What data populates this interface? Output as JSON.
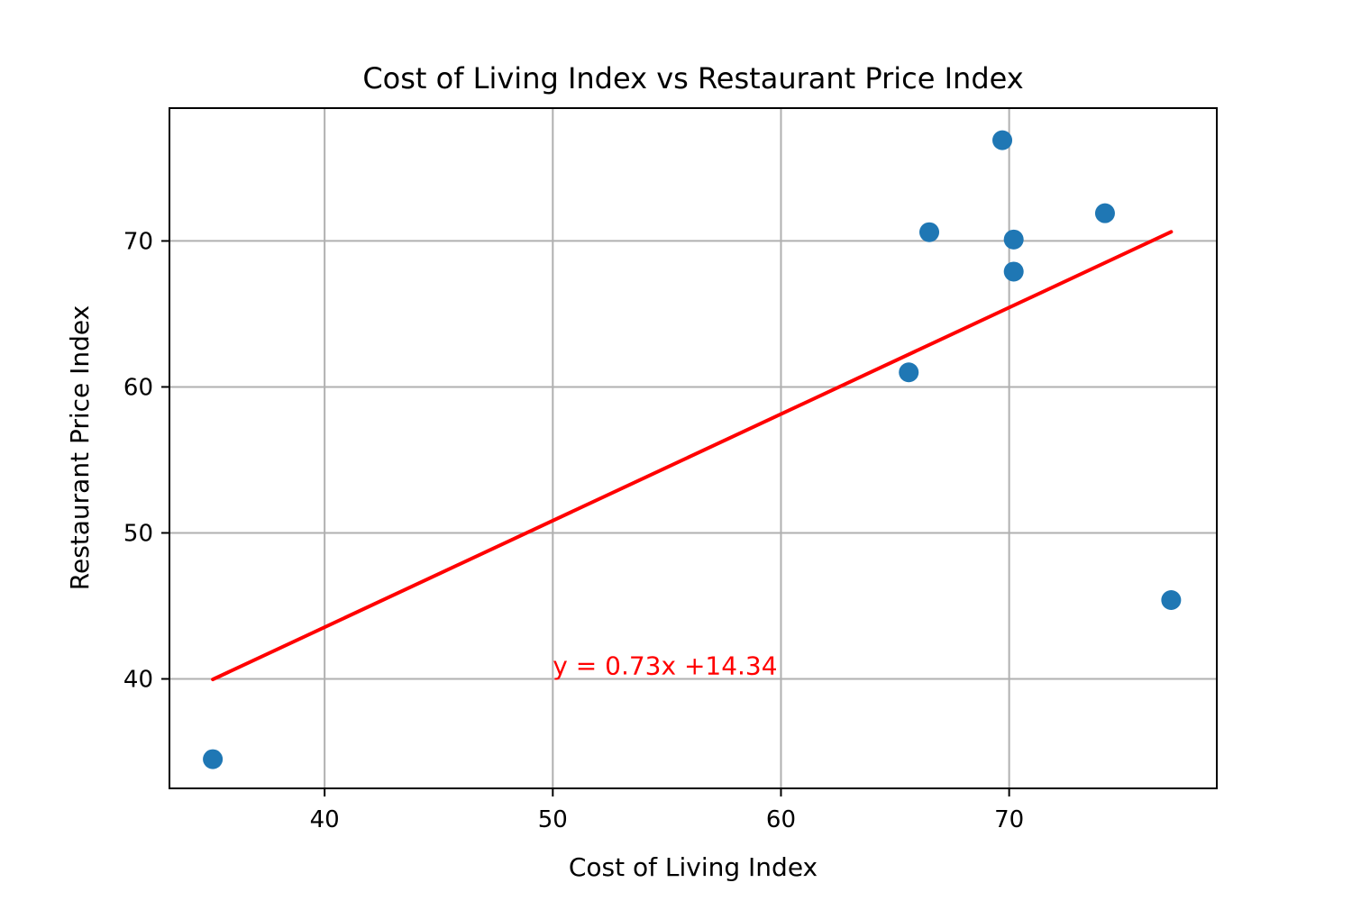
{
  "chart_data": {
    "type": "scatter",
    "title": "Cost of Living Index vs Restaurant Price Index",
    "xlabel": "Cost of Living Index",
    "ylabel": "Restaurant Price Index",
    "xlim": [
      33.2,
      79.1
    ],
    "ylim": [
      32.5,
      79.1
    ],
    "xticks": [
      40,
      50,
      60,
      70
    ],
    "yticks": [
      40,
      50,
      60,
      70
    ],
    "grid": true,
    "points": [
      {
        "x": 35.1,
        "y": 34.5
      },
      {
        "x": 65.6,
        "y": 61.0
      },
      {
        "x": 66.5,
        "y": 70.6
      },
      {
        "x": 69.7,
        "y": 76.9
      },
      {
        "x": 70.2,
        "y": 70.1
      },
      {
        "x": 70.2,
        "y": 67.9
      },
      {
        "x": 74.2,
        "y": 71.9
      },
      {
        "x": 77.1,
        "y": 45.4
      }
    ],
    "regression": {
      "slope": 0.73,
      "intercept": 14.34,
      "x_range": [
        35.1,
        77.1
      ],
      "label": "y = 0.73x +14.34",
      "label_x": 50.0,
      "label_y": 40.3
    },
    "colors": {
      "points": "#1f77b4",
      "regression": "#ff0000",
      "grid": "#b0b0b0",
      "axes": "#000000"
    }
  }
}
